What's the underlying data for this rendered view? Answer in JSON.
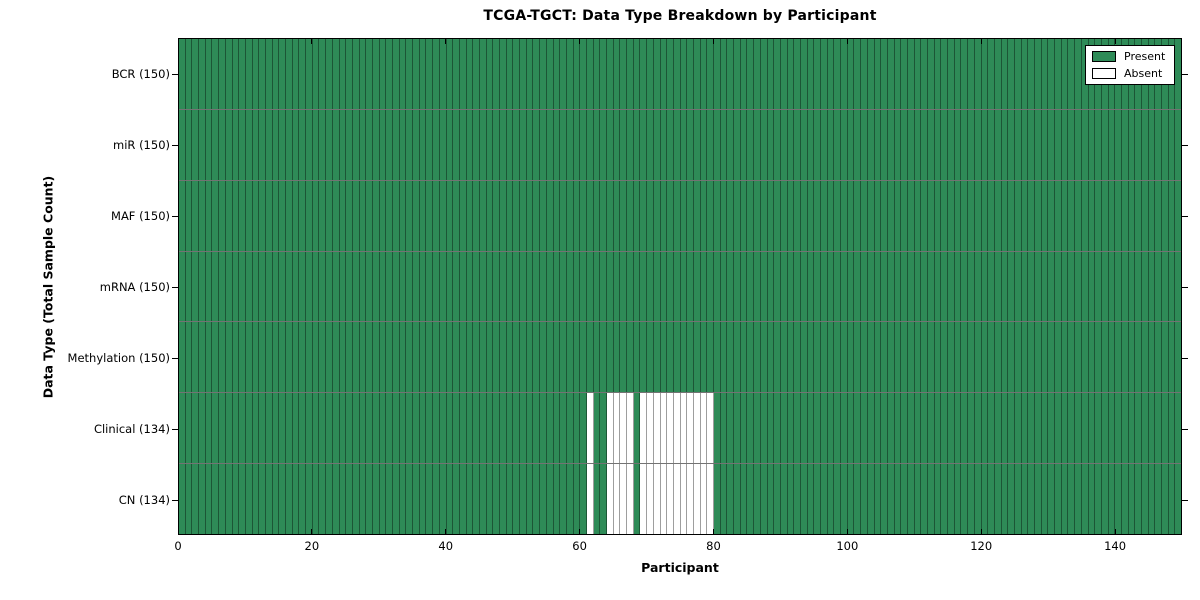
{
  "chart_data": {
    "type": "heatmap",
    "title": "TCGA-TGCT: Data Type Breakdown by Participant",
    "xlabel": "Participant",
    "ylabel": "Data Type (Total Sample Count)",
    "n_participants": 150,
    "x_range": [
      0,
      150
    ],
    "x_ticks": [
      0,
      20,
      40,
      60,
      80,
      100,
      120,
      140
    ],
    "grid": "cell-edges",
    "rows": [
      {
        "label": "BCR (150)",
        "data_type": "BCR",
        "total_sample_count": 150,
        "absent_participants": []
      },
      {
        "label": "miR (150)",
        "data_type": "miR",
        "total_sample_count": 150,
        "absent_participants": []
      },
      {
        "label": "MAF (150)",
        "data_type": "MAF",
        "total_sample_count": 150,
        "absent_participants": []
      },
      {
        "label": "mRNA (150)",
        "data_type": "mRNA",
        "total_sample_count": 150,
        "absent_participants": []
      },
      {
        "label": "Methylation (150)",
        "data_type": "Methylation",
        "total_sample_count": 150,
        "absent_participants": []
      },
      {
        "label": "Clinical (134)",
        "data_type": "Clinical",
        "total_sample_count": 134,
        "absent_participants": [
          61,
          64,
          65,
          66,
          67,
          69,
          70,
          71,
          72,
          73,
          74,
          75,
          76,
          77,
          78,
          79
        ]
      },
      {
        "label": "CN (134)",
        "data_type": "CN",
        "total_sample_count": 134,
        "absent_participants": [
          61,
          64,
          65,
          66,
          67,
          69,
          70,
          71,
          72,
          73,
          74,
          75,
          76,
          77,
          78,
          79
        ]
      }
    ],
    "legend": {
      "position": "upper-right",
      "entries": [
        {
          "label": "Present",
          "color": "#2E8B57"
        },
        {
          "label": "Absent",
          "color": "#FFFFFF"
        }
      ]
    },
    "colors": {
      "present": "#2E8B57",
      "absent": "#FFFFFF",
      "cell_edge": "rgba(0,0,0,0.38)",
      "row_edge": "rgba(0,0,0,0.55)",
      "axes": "#000000"
    }
  }
}
